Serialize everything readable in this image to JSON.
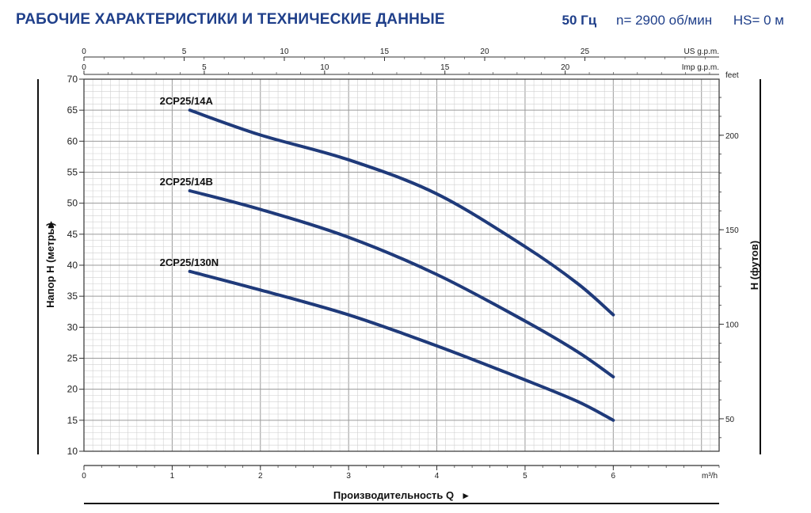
{
  "header": {
    "title": "РАБОЧИЕ ХАРАКТЕРИСТИКИ И ТЕХНИЧЕСКИЕ ДАННЫЕ",
    "frequency": "50 Гц",
    "speed": "n= 2900 об/мин",
    "hs": "HS= 0 м"
  },
  "chart_data": {
    "type": "line",
    "title": "",
    "xlabel": "Производительность Q",
    "ylabel": "Напор H (метры)",
    "y2label": "H (футов)",
    "x_unit": "m³/h",
    "xlim": [
      0,
      7.2
    ],
    "ylim": [
      10,
      70
    ],
    "x_ticks": [
      0,
      1,
      2,
      3,
      4,
      5,
      6
    ],
    "y_ticks": [
      10,
      15,
      20,
      25,
      30,
      35,
      40,
      45,
      50,
      55,
      60,
      65,
      70
    ],
    "y2_unit": "feet",
    "y2_ticks": [
      50,
      100,
      150,
      200
    ],
    "top_axis_us": {
      "unit": "US g.p.m.",
      "ticks": [
        0,
        5,
        10,
        15,
        20,
        25
      ]
    },
    "top_axis_imp": {
      "unit": "Imp g.p.m.",
      "ticks": [
        0,
        5,
        10,
        15,
        20
      ]
    },
    "grid": true,
    "line_color": "#1f3a7a",
    "series": [
      {
        "name": "2CP25/14A",
        "x": [
          1.2,
          2.0,
          3.0,
          4.0,
          5.0,
          5.6,
          6.0
        ],
        "y": [
          65,
          61,
          57,
          51.5,
          43,
          37,
          32
        ]
      },
      {
        "name": "2CP25/14B",
        "x": [
          1.2,
          2.0,
          3.0,
          4.0,
          5.0,
          5.6,
          6.0
        ],
        "y": [
          52,
          49,
          44.5,
          38.5,
          31,
          26,
          22
        ]
      },
      {
        "name": "2CP25/130N",
        "x": [
          1.2,
          2.0,
          3.0,
          4.0,
          5.0,
          5.6,
          6.0
        ],
        "y": [
          39,
          36,
          32,
          27,
          21.5,
          18,
          15
        ]
      }
    ]
  }
}
